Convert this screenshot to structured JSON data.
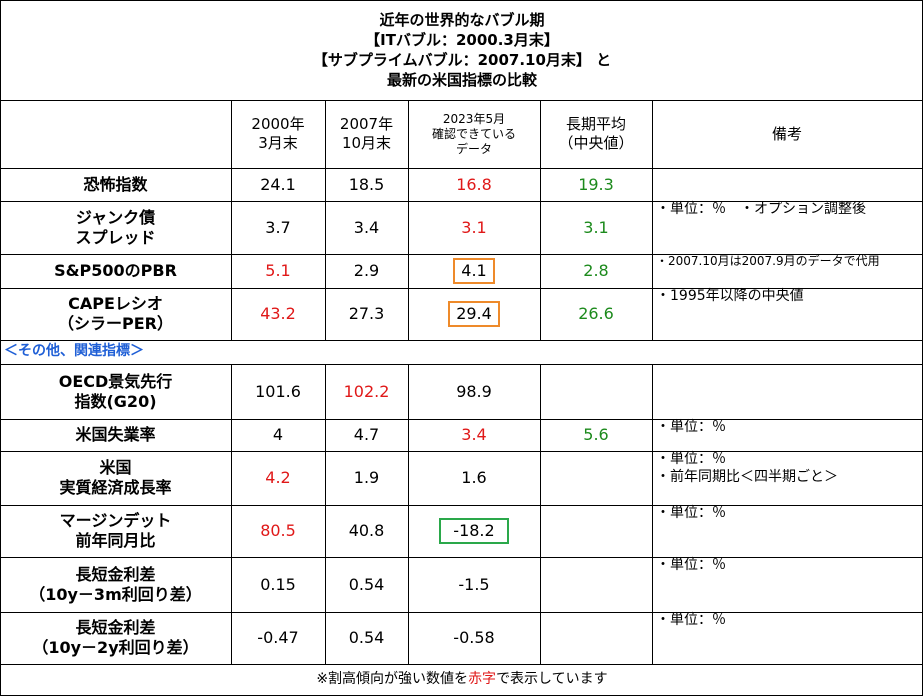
{
  "title": {
    "line1": "近年の世界的なバブル期",
    "line2": "【ITバブル：2000.3月末】",
    "line3": "【サブプライムバブル：2007.10月末】 と",
    "line4": "最新の米国指標の比較"
  },
  "headers": {
    "col1": [
      "2000年",
      "3月末"
    ],
    "col2": [
      "2007年",
      "10月末"
    ],
    "col3": [
      "2023年5月",
      "確認できている",
      "データ"
    ],
    "col4": [
      "長期平均",
      "（中央値）"
    ],
    "col5": "備考"
  },
  "section_label": "＜その他、関連指標＞",
  "rows": [
    {
      "label": [
        "恐怖指数"
      ],
      "v2000": "24.1",
      "v2007": "18.5",
      "v2023": "16.8",
      "avg": "19.3",
      "notes": []
    },
    {
      "label": [
        "ジャンク債",
        "スプレッド"
      ],
      "v2000": "3.7",
      "v2007": "3.4",
      "v2023": "3.1",
      "avg": "3.1",
      "notes": [
        "・単位：％　・オプション調整後"
      ]
    },
    {
      "label": [
        "S&P500のPBR"
      ],
      "v2000": "5.1",
      "v2007": "2.9",
      "v2023": "4.1",
      "avg": "2.8",
      "notes": [
        "・2007.10月は2007.9月のデータで代用"
      ]
    },
    {
      "label": [
        "CAPEレシオ",
        "（シラーPER）"
      ],
      "v2000": "43.2",
      "v2007": "27.3",
      "v2023": "29.4",
      "avg": "26.6",
      "notes": [
        "・1995年以降の中央値"
      ]
    },
    {
      "label": [
        "OECD景気先行",
        "指数(G20)"
      ],
      "v2000": "101.6",
      "v2007": "102.2",
      "v2023": "98.9",
      "avg": "",
      "notes": []
    },
    {
      "label": [
        "米国失業率"
      ],
      "v2000": "4",
      "v2007": "4.7",
      "v2023": "3.4",
      "avg": "5.6",
      "notes": [
        "・単位：％"
      ]
    },
    {
      "label": [
        "米国",
        "実質経済成長率"
      ],
      "v2000": "4.2",
      "v2007": "1.9",
      "v2023": "1.6",
      "avg": "",
      "notes": [
        "・単位：％",
        "・前年同期比＜四半期ごと＞"
      ]
    },
    {
      "label": [
        "マージンデット",
        "前年同月比"
      ],
      "v2000": "80.5",
      "v2007": "40.8",
      "v2023": "-18.2",
      "avg": "",
      "notes": [
        "・単位：％"
      ]
    },
    {
      "label": [
        "長短金利差",
        "（10y－3m利回り差）"
      ],
      "v2000": "0.15",
      "v2007": "0.54",
      "v2023": "-1.5",
      "avg": "",
      "notes": [
        "・単位：％"
      ]
    },
    {
      "label": [
        "長短金利差",
        "（10y－2y利回り差）"
      ],
      "v2000": "-0.47",
      "v2007": "0.54",
      "v2023": "-0.58",
      "avg": "",
      "notes": [
        "・単位：％"
      ]
    }
  ],
  "footer": {
    "before": "※割高傾向が強い数値を",
    "highlight": "赤字",
    "after": "で表示しています"
  },
  "colors": {
    "highlight_red": "#e01818",
    "average_green": "#1c8a1c",
    "section_blue": "#1f5fd6",
    "box_orange": "#ee8a2a",
    "box_green": "#2aa84a"
  }
}
